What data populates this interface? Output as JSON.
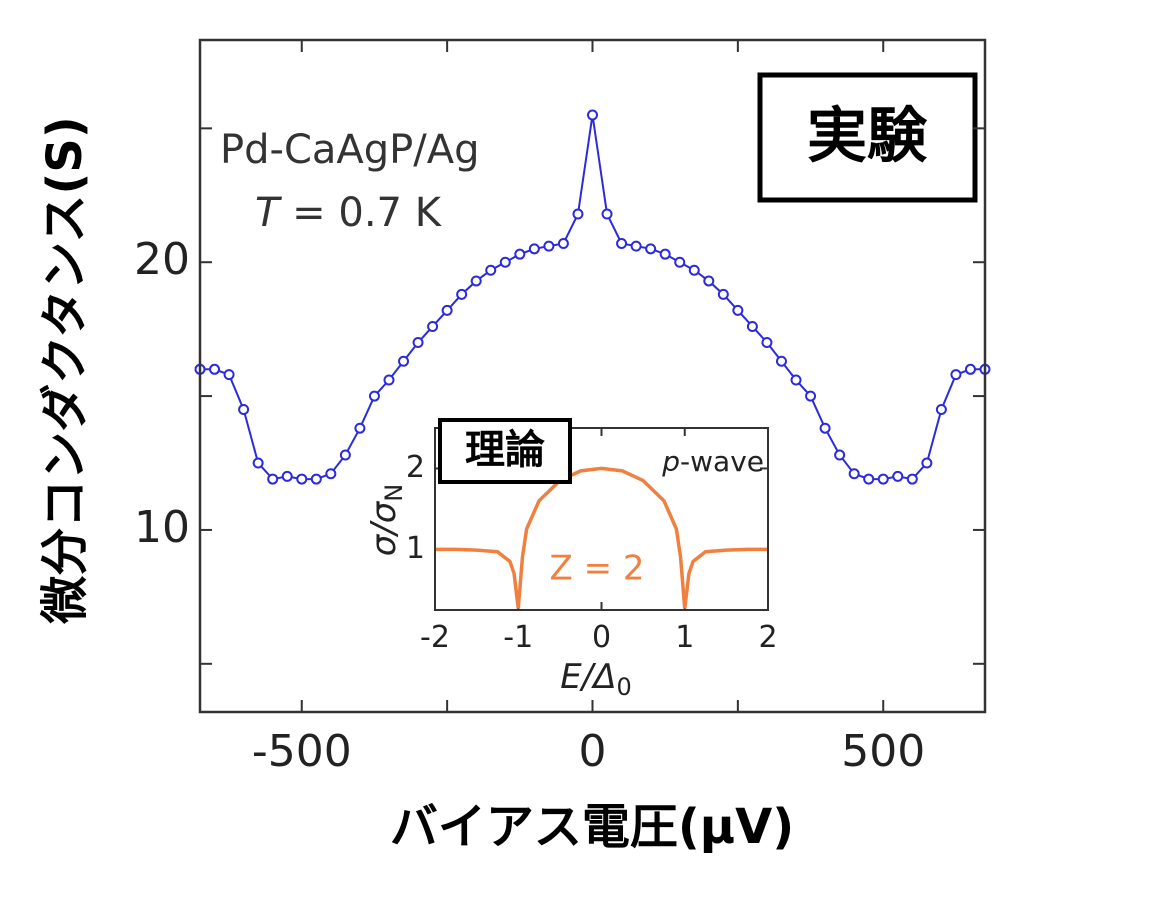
{
  "chart_data": [
    {
      "type": "scatter-line",
      "x_label": "バイアス電圧(μV)",
      "y_label": "微分コンダクタンス(S)",
      "annotation": "Pd-CaAgP/Ag",
      "temperature": {
        "symbol": "T",
        "rest": " = 0.7 K"
      },
      "box_label": "実験",
      "xlim": [
        -675,
        675
      ],
      "ylim": [
        3.2,
        28.3
      ],
      "xticks": [
        -500,
        0,
        500
      ],
      "xminor_ticks": [
        -250,
        250
      ],
      "yticks": [
        10,
        20
      ],
      "yminor_ticks": [
        5,
        15,
        25
      ],
      "series": [
        {
          "color": "#2b2bdd",
          "x": [
            -675,
            -650,
            -625,
            -600,
            -575,
            -550,
            -525,
            -500,
            -475,
            -450,
            -425,
            -400,
            -375,
            -350,
            -325,
            -300,
            -275,
            -250,
            -225,
            -200,
            -175,
            -150,
            -125,
            -100,
            -75,
            -50,
            -25,
            0,
            25,
            50,
            75,
            100,
            125,
            150,
            175,
            200,
            225,
            250,
            275,
            300,
            325,
            350,
            375,
            400,
            425,
            450,
            475,
            500,
            525,
            550,
            575,
            600,
            625,
            650,
            675
          ],
          "values": [
            16.0,
            16.0,
            15.8,
            14.5,
            12.5,
            11.9,
            12.0,
            11.9,
            11.9,
            12.1,
            12.8,
            13.8,
            15.0,
            15.6,
            16.3,
            17.0,
            17.6,
            18.2,
            18.8,
            19.3,
            19.7,
            20.0,
            20.3,
            20.5,
            20.6,
            20.7,
            21.8,
            25.5,
            21.8,
            20.7,
            20.6,
            20.5,
            20.3,
            20.0,
            19.7,
            19.3,
            18.8,
            18.2,
            17.6,
            17.0,
            16.3,
            15.6,
            15.0,
            13.8,
            12.8,
            12.1,
            11.9,
            11.9,
            12.0,
            11.9,
            12.5,
            14.5,
            15.8,
            16.0,
            16.0
          ]
        }
      ]
    },
    {
      "type": "line",
      "x_label": {
        "symbol": "E/Δ",
        "sub": "0"
      },
      "y_label": {
        "symbol": "σ/σ",
        "sub": "N"
      },
      "box_label": "理論",
      "model": {
        "symbol": "p",
        "rest": "-wave"
      },
      "annotation": "Z = 2",
      "xlim": [
        -2,
        2
      ],
      "ylim": [
        0.25,
        2.5
      ],
      "xticks": [
        -2,
        -1,
        0,
        1,
        2
      ],
      "yticks": [
        1,
        2
      ],
      "series": [
        {
          "color": "#f08040",
          "x": [
            -2,
            -1.75,
            -1.5,
            -1.25,
            -1.1,
            -1.05,
            -1,
            -0.95,
            -0.9,
            -0.75,
            -0.5,
            -0.25,
            0,
            0.25,
            0.5,
            0.75,
            0.9,
            0.95,
            1,
            1.05,
            1.1,
            1.25,
            1.5,
            1.75,
            2
          ],
          "values": [
            1.0,
            1.0,
            0.99,
            0.97,
            0.85,
            0.7,
            0.27,
            0.9,
            1.25,
            1.6,
            1.85,
            1.97,
            2.0,
            1.97,
            1.85,
            1.6,
            1.25,
            0.9,
            0.27,
            0.7,
            0.85,
            0.97,
            0.99,
            1.0,
            1.0
          ]
        }
      ]
    }
  ]
}
